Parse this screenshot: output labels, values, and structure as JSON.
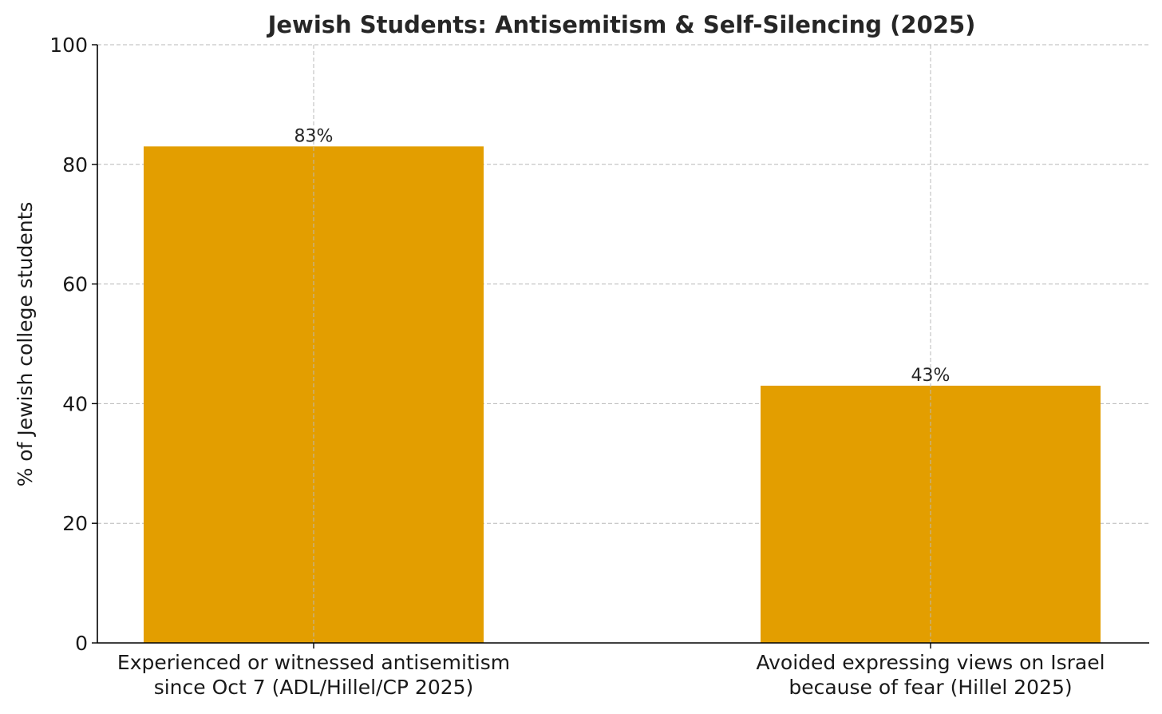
{
  "chart_data": {
    "type": "bar",
    "title": "Jewish Students: Antisemitism & Self-Silencing (2025)",
    "xlabel": "",
    "ylabel": "% of Jewish college students",
    "ylim": [
      0,
      100
    ],
    "yticks": [
      0,
      20,
      40,
      60,
      80,
      100
    ],
    "grid": true,
    "bar_color": "#E39E00",
    "categories": [
      [
        "Experienced or witnessed antisemitism",
        "since Oct 7 (ADL/Hillel/CP 2025)"
      ],
      [
        "Avoided expressing views on Israel",
        "because of fear (Hillel 2025)"
      ]
    ],
    "values": [
      83,
      43
    ],
    "data_labels": [
      "83%",
      "43%"
    ]
  }
}
